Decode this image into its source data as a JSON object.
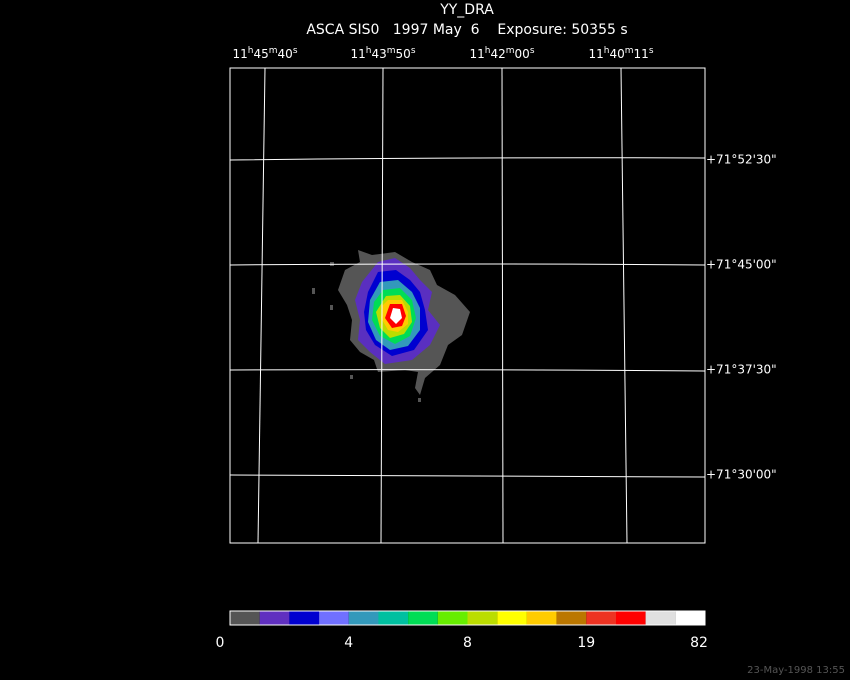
{
  "header": {
    "title": "YY_DRA",
    "subtitle": "ASCA SIS0   1997 May  6    Exposure: 50355 s"
  },
  "ra_labels": [
    "11h45m40s",
    "11h43m50s",
    "11h42m00s",
    "11h40m11s"
  ],
  "dec_labels": [
    "+71°52'30\"",
    "+71°45'00\"",
    "+71°37'30\"",
    "+71°30'00\""
  ],
  "colorbar_labels": [
    0,
    4,
    8,
    19,
    82
  ],
  "footer": "23-May-1998 13:55"
}
